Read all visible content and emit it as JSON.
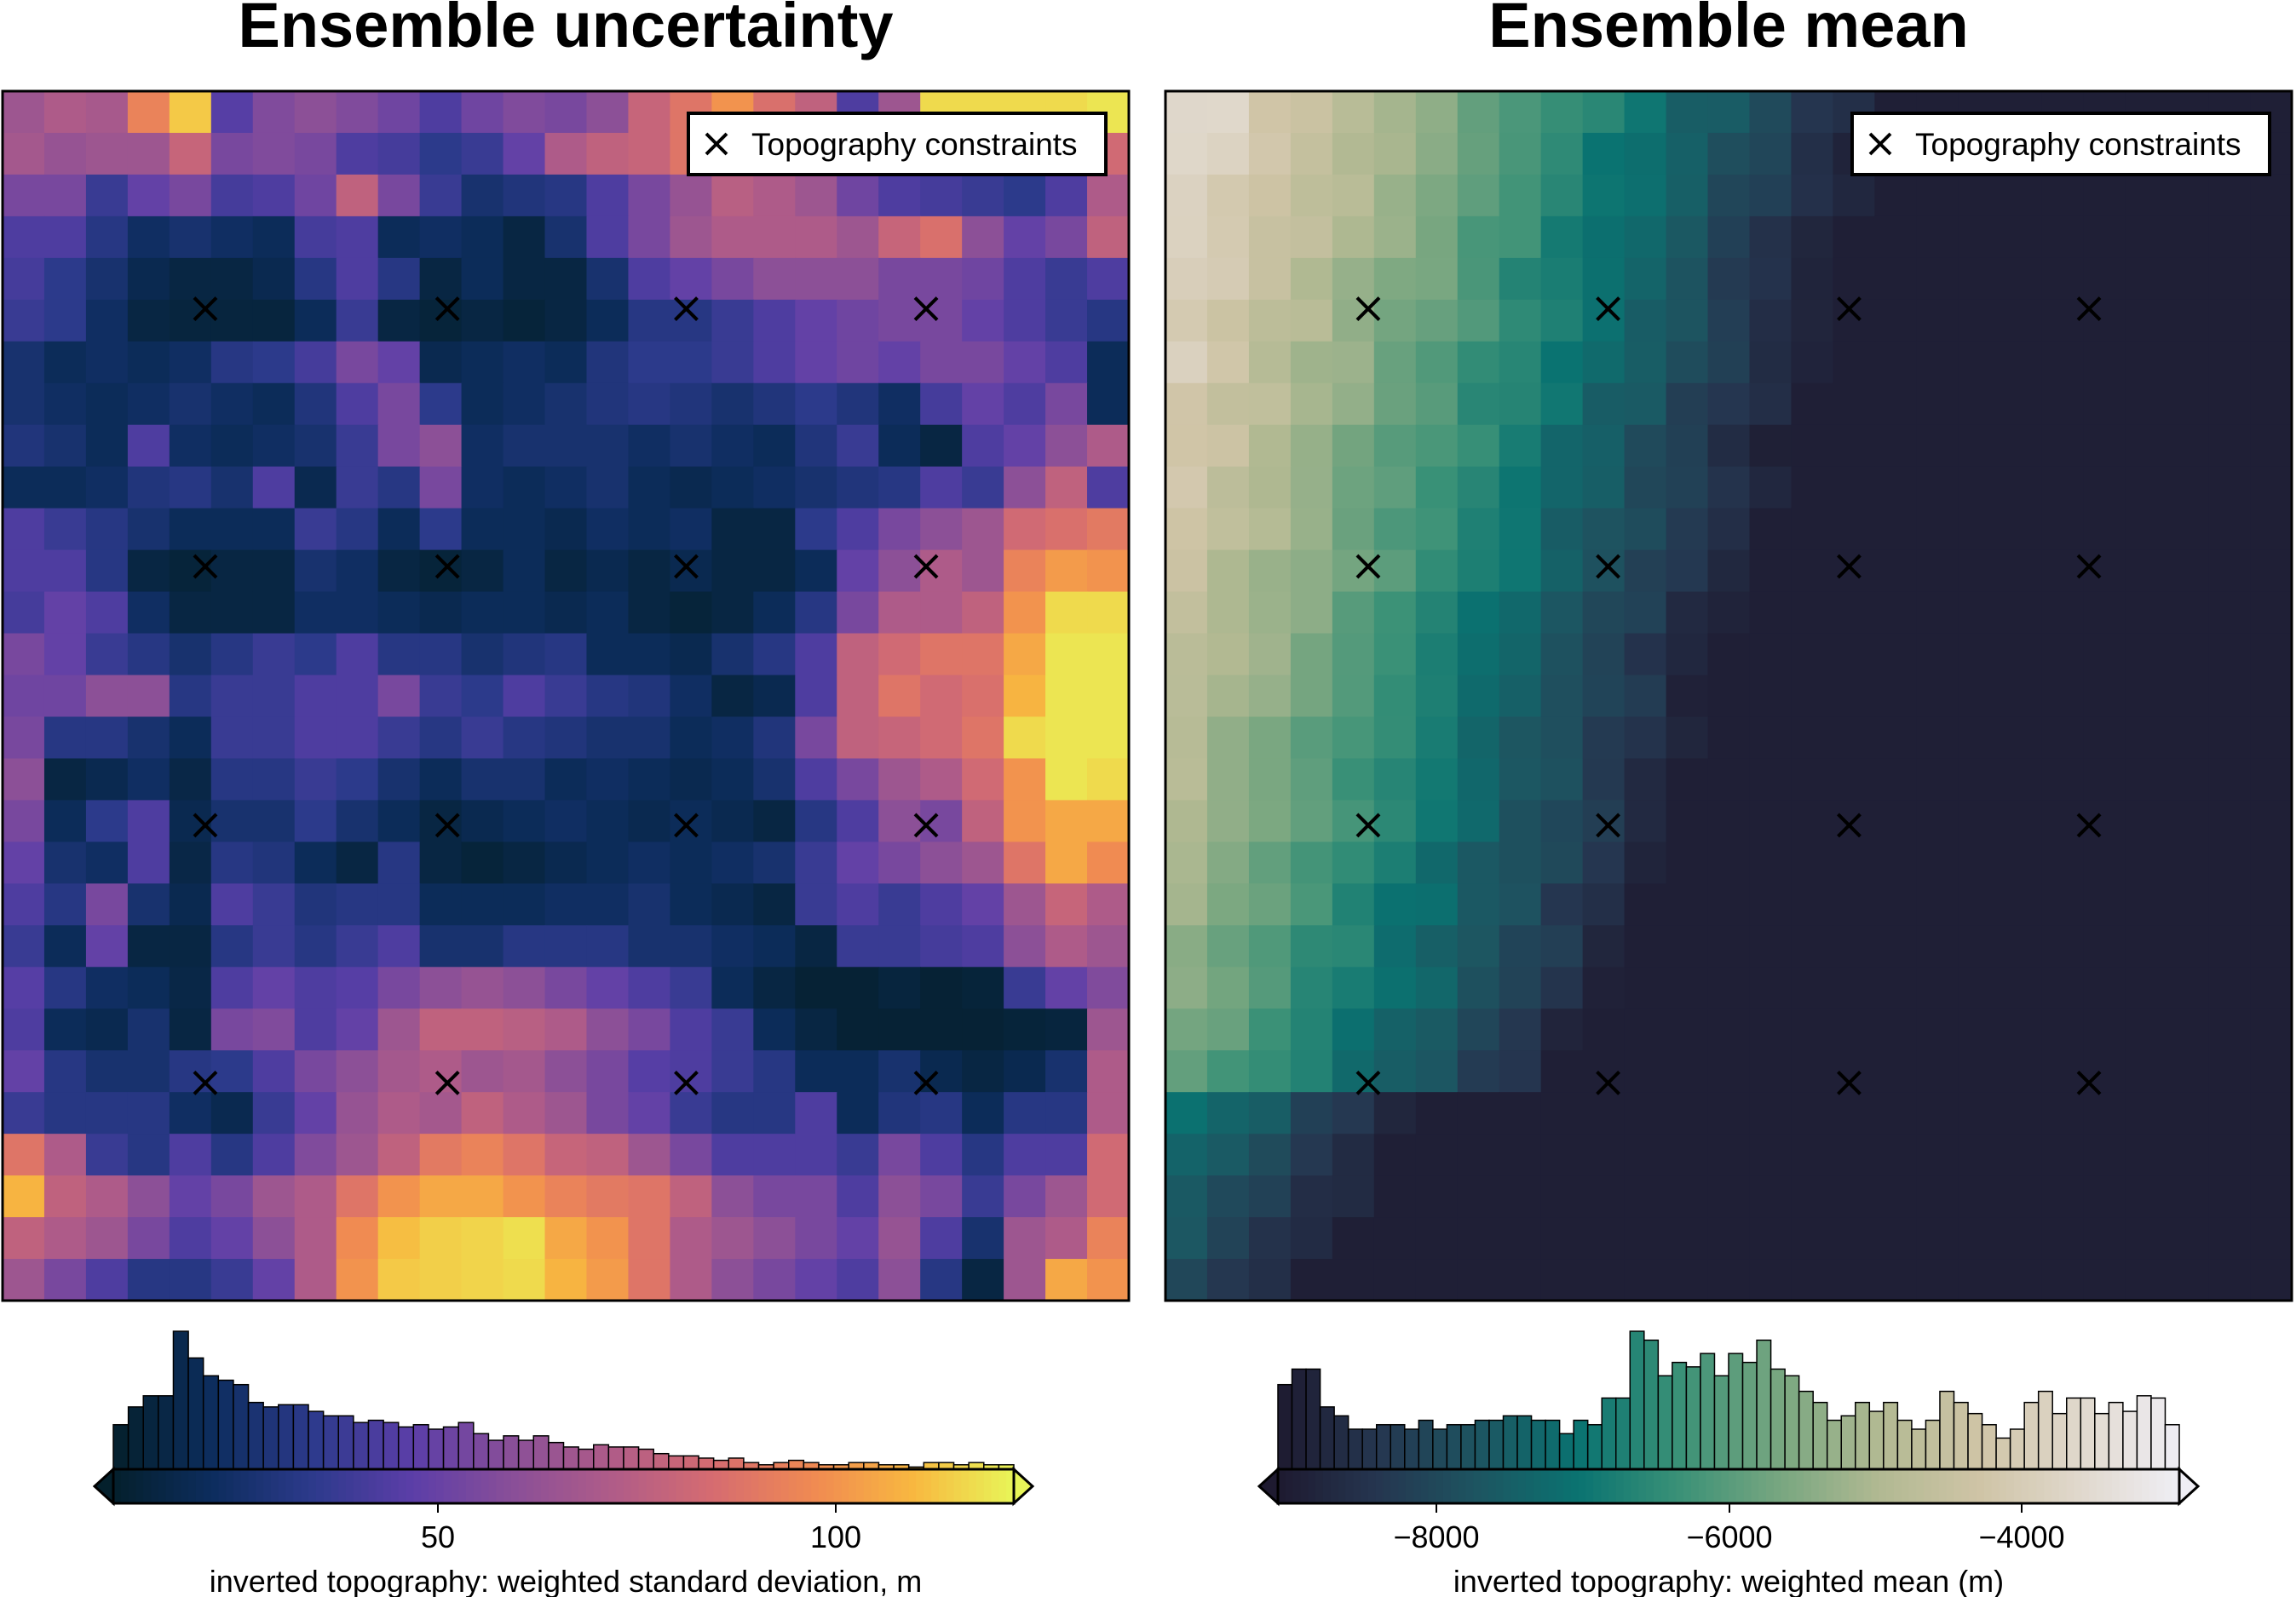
{
  "panels": [
    {
      "title": "Ensemble uncertainty",
      "legend_label": "Topography constraints",
      "colorbar_label": "inverted topography: weighted standard deviation, m",
      "colorbar_ticks": [
        "50",
        "100"
      ],
      "colormap": "thermal",
      "colors": [
        "#04202c",
        "#0d2d5e",
        "#2d3a8c",
        "#5c3ea8",
        "#8a4f98",
        "#b05c88",
        "#d66c70",
        "#f08a52",
        "#f8b840",
        "#e8f558"
      ]
    },
    {
      "title": "Ensemble mean",
      "legend_label": "Topography constraints",
      "colorbar_label": "inverted topography: weighted mean (m)",
      "colorbar_ticks": [
        "−8000",
        "−6000",
        "−4000"
      ],
      "colormap": "rain",
      "colors": [
        "#1e1a30",
        "#253650",
        "#1d5561",
        "#0a7371",
        "#3a9177",
        "#77a680",
        "#b1b992",
        "#cfc4a6",
        "#e0d8cc",
        "#efeef5"
      ]
    }
  ],
  "chart_data": [
    {
      "type": "heatmap",
      "title": "Ensemble uncertainty",
      "grid": false,
      "colorbar_label": "inverted topography: weighted standard deviation, m",
      "colorbar_range": [
        10,
        122
      ],
      "colorbar_ticks": [
        50,
        100
      ],
      "colorbar_extend": "both",
      "hist_heights": [
        20,
        28,
        33,
        33,
        62,
        50,
        42,
        40,
        38,
        30,
        28,
        29,
        29,
        26,
        24,
        24,
        21,
        22,
        21,
        19,
        20,
        18,
        19,
        21,
        16,
        13,
        15,
        13,
        15,
        12,
        10,
        9,
        11,
        10,
        10,
        9,
        7,
        6,
        6,
        5,
        4,
        5,
        3,
        2,
        3,
        4,
        3,
        2,
        2,
        3,
        3,
        2,
        2,
        1,
        3,
        3,
        2,
        3,
        2,
        2
      ],
      "constraints_label": "Topography constraints",
      "constraints": [
        [
          0.18,
          0.18
        ],
        [
          0.395,
          0.18
        ],
        [
          0.607,
          0.18
        ],
        [
          0.82,
          0.18
        ],
        [
          0.18,
          0.393
        ],
        [
          0.395,
          0.393
        ],
        [
          0.607,
          0.393
        ],
        [
          0.82,
          0.393
        ],
        [
          0.18,
          0.607
        ],
        [
          0.395,
          0.607
        ],
        [
          0.607,
          0.607
        ],
        [
          0.82,
          0.607
        ],
        [
          0.18,
          0.82
        ],
        [
          0.395,
          0.82
        ],
        [
          0.607,
          0.82
        ],
        [
          0.82,
          0.82
        ]
      ],
      "grid_values": [
        [
          0.5,
          0.55,
          0.53,
          0.75,
          0.92,
          0.32,
          0.42,
          0.45,
          0.42,
          0.38,
          0.3,
          0.38,
          0.42,
          0.4,
          0.45,
          0.62,
          0.7,
          0.8,
          0.68,
          0.6,
          0.3,
          0.5,
          0.95,
          0.95,
          0.95,
          0.95,
          0.97
        ],
        [
          0.52,
          0.48,
          0.5,
          0.5,
          0.62,
          0.4,
          0.42,
          0.4,
          0.3,
          0.28,
          0.22,
          0.25,
          0.35,
          0.55,
          0.6,
          0.62,
          0.7,
          0.7,
          0.72,
          0.65,
          0.45,
          0.3,
          0.28,
          0.22,
          0.2,
          0.18,
          0.65
        ],
        [
          0.4,
          0.4,
          0.25,
          0.35,
          0.4,
          0.28,
          0.3,
          0.38,
          0.6,
          0.4,
          0.25,
          0.15,
          0.18,
          0.2,
          0.3,
          0.4,
          0.48,
          0.58,
          0.55,
          0.5,
          0.38,
          0.3,
          0.28,
          0.25,
          0.22,
          0.3,
          0.55
        ],
        [
          0.3,
          0.3,
          0.2,
          0.12,
          0.15,
          0.12,
          0.1,
          0.28,
          0.3,
          0.1,
          0.12,
          0.1,
          0.05,
          0.15,
          0.3,
          0.4,
          0.5,
          0.55,
          0.55,
          0.55,
          0.5,
          0.62,
          0.68,
          0.45,
          0.35,
          0.4,
          0.6
        ],
        [
          0.28,
          0.22,
          0.15,
          0.08,
          0.05,
          0.05,
          0.08,
          0.2,
          0.3,
          0.2,
          0.05,
          0.1,
          0.05,
          0.05,
          0.15,
          0.3,
          0.35,
          0.4,
          0.45,
          0.45,
          0.45,
          0.4,
          0.4,
          0.38,
          0.3,
          0.25,
          0.3
        ],
        [
          0.25,
          0.22,
          0.12,
          0.05,
          0.04,
          0.04,
          0.04,
          0.1,
          0.25,
          0.05,
          0.03,
          0.05,
          0.03,
          0.05,
          0.1,
          0.2,
          0.2,
          0.25,
          0.3,
          0.35,
          0.38,
          0.4,
          0.4,
          0.35,
          0.3,
          0.25,
          0.2
        ],
        [
          0.15,
          0.1,
          0.12,
          0.1,
          0.12,
          0.2,
          0.22,
          0.28,
          0.4,
          0.35,
          0.08,
          0.1,
          0.12,
          0.1,
          0.18,
          0.22,
          0.22,
          0.25,
          0.3,
          0.35,
          0.38,
          0.35,
          0.4,
          0.4,
          0.35,
          0.3,
          0.1
        ],
        [
          0.15,
          0.12,
          0.1,
          0.12,
          0.15,
          0.12,
          0.1,
          0.18,
          0.3,
          0.4,
          0.22,
          0.1,
          0.12,
          0.15,
          0.18,
          0.2,
          0.18,
          0.15,
          0.18,
          0.22,
          0.18,
          0.12,
          0.28,
          0.35,
          0.3,
          0.4,
          0.1
        ],
        [
          0.18,
          0.15,
          0.1,
          0.3,
          0.12,
          0.1,
          0.12,
          0.15,
          0.25,
          0.4,
          0.45,
          0.12,
          0.15,
          0.15,
          0.15,
          0.12,
          0.15,
          0.12,
          0.1,
          0.18,
          0.25,
          0.1,
          0.05,
          0.3,
          0.35,
          0.45,
          0.55
        ],
        [
          0.1,
          0.1,
          0.12,
          0.18,
          0.2,
          0.15,
          0.3,
          0.08,
          0.25,
          0.2,
          0.4,
          0.12,
          0.1,
          0.12,
          0.15,
          0.1,
          0.08,
          0.1,
          0.12,
          0.15,
          0.18,
          0.2,
          0.3,
          0.25,
          0.45,
          0.6,
          0.3
        ],
        [
          0.3,
          0.25,
          0.2,
          0.15,
          0.1,
          0.1,
          0.1,
          0.25,
          0.2,
          0.1,
          0.22,
          0.1,
          0.1,
          0.08,
          0.12,
          0.1,
          0.12,
          0.05,
          0.05,
          0.22,
          0.3,
          0.4,
          0.45,
          0.5,
          0.65,
          0.68,
          0.72
        ],
        [
          0.3,
          0.3,
          0.2,
          0.05,
          0.03,
          0.05,
          0.05,
          0.15,
          0.12,
          0.05,
          0.03,
          0.05,
          0.1,
          0.05,
          0.08,
          0.05,
          0.08,
          0.05,
          0.05,
          0.1,
          0.35,
          0.45,
          0.55,
          0.5,
          0.75,
          0.82,
          0.8
        ],
        [
          0.28,
          0.35,
          0.3,
          0.12,
          0.05,
          0.05,
          0.05,
          0.12,
          0.12,
          0.1,
          0.08,
          0.1,
          0.1,
          0.08,
          0.1,
          0.05,
          0.03,
          0.05,
          0.1,
          0.2,
          0.4,
          0.55,
          0.55,
          0.6,
          0.8,
          0.95,
          0.95
        ],
        [
          0.4,
          0.35,
          0.25,
          0.2,
          0.15,
          0.2,
          0.25,
          0.22,
          0.3,
          0.2,
          0.2,
          0.15,
          0.18,
          0.2,
          0.1,
          0.1,
          0.08,
          0.15,
          0.2,
          0.3,
          0.6,
          0.65,
          0.7,
          0.7,
          0.85,
          0.97,
          0.97
        ],
        [
          0.38,
          0.38,
          0.45,
          0.45,
          0.2,
          0.25,
          0.25,
          0.3,
          0.3,
          0.4,
          0.25,
          0.22,
          0.3,
          0.25,
          0.2,
          0.18,
          0.12,
          0.05,
          0.08,
          0.3,
          0.6,
          0.7,
          0.65,
          0.68,
          0.88,
          0.97,
          0.97
        ],
        [
          0.25,
          0.45,
          0.5,
          0.42,
          0.1,
          0.3,
          0.3,
          0.35,
          0.35,
          0.45,
          0.3,
          0.3,
          0.3,
          0.3,
          0.2,
          0.15,
          0.05,
          0.08,
          0.1,
          0.4,
          0.75,
          0.7,
          0.72,
          0.75,
          0.9,
          0.97,
          0.85
        ],
        [
          0.4,
          0.2,
          0.2,
          0.15,
          0.1,
          0.25,
          0.25,
          0.3,
          0.3,
          0.25,
          0.2,
          0.25,
          0.2,
          0.18,
          0.15,
          0.15,
          0.1,
          0.12,
          0.18,
          0.4,
          0.6,
          0.62,
          0.65,
          0.7,
          0.95,
          0.97,
          0.97
        ],
        [
          0.45,
          0.05,
          0.08,
          0.12,
          0.06,
          0.2,
          0.2,
          0.25,
          0.22,
          0.15,
          0.1,
          0.15,
          0.15,
          0.1,
          0.12,
          0.1,
          0.08,
          0.1,
          0.15,
          0.3,
          0.4,
          0.5,
          0.55,
          0.65,
          0.8,
          0.97,
          0.95
        ],
        [
          0.4,
          0.1,
          0.22,
          0.3,
          0.08,
          0.15,
          0.15,
          0.22,
          0.15,
          0.1,
          0.05,
          0.08,
          0.1,
          0.12,
          0.1,
          0.08,
          0.1,
          0.08,
          0.05,
          0.2,
          0.3,
          0.45,
          0.4,
          0.6,
          0.8,
          0.85,
          0.85
        ],
        [
          0.35,
          0.15,
          0.12,
          0.3,
          0.06,
          0.2,
          0.18,
          0.1,
          0.05,
          0.2,
          0.05,
          0.03,
          0.05,
          0.08,
          0.1,
          0.12,
          0.1,
          0.12,
          0.15,
          0.25,
          0.35,
          0.4,
          0.45,
          0.5,
          0.7,
          0.85,
          0.78
        ],
        [
          0.3,
          0.2,
          0.4,
          0.15,
          0.08,
          0.3,
          0.25,
          0.18,
          0.2,
          0.2,
          0.1,
          0.1,
          0.1,
          0.12,
          0.12,
          0.15,
          0.1,
          0.08,
          0.05,
          0.25,
          0.3,
          0.25,
          0.3,
          0.35,
          0.5,
          0.62,
          0.55
        ],
        [
          0.25,
          0.1,
          0.35,
          0.05,
          0.05,
          0.2,
          0.25,
          0.2,
          0.25,
          0.3,
          0.15,
          0.15,
          0.2,
          0.2,
          0.2,
          0.15,
          0.15,
          0.12,
          0.1,
          0.05,
          0.25,
          0.25,
          0.28,
          0.3,
          0.45,
          0.55,
          0.5
        ],
        [
          0.32,
          0.2,
          0.12,
          0.1,
          0.06,
          0.3,
          0.35,
          0.3,
          0.32,
          0.4,
          0.45,
          0.48,
          0.45,
          0.4,
          0.35,
          0.3,
          0.25,
          0.1,
          0.05,
          0.02,
          0.02,
          0.04,
          0.02,
          0.03,
          0.25,
          0.35,
          0.42
        ],
        [
          0.3,
          0.1,
          0.08,
          0.15,
          0.05,
          0.4,
          0.42,
          0.3,
          0.35,
          0.5,
          0.6,
          0.6,
          0.58,
          0.55,
          0.45,
          0.4,
          0.3,
          0.25,
          0.1,
          0.05,
          0.02,
          0.02,
          0.02,
          0.02,
          0.03,
          0.04,
          0.5
        ],
        [
          0.35,
          0.2,
          0.15,
          0.15,
          0.2,
          0.22,
          0.3,
          0.4,
          0.45,
          0.52,
          0.55,
          0.5,
          0.52,
          0.45,
          0.4,
          0.32,
          0.3,
          0.25,
          0.2,
          0.1,
          0.1,
          0.15,
          0.08,
          0.05,
          0.08,
          0.15,
          0.55
        ],
        [
          0.25,
          0.2,
          0.2,
          0.2,
          0.12,
          0.08,
          0.25,
          0.35,
          0.48,
          0.55,
          0.52,
          0.6,
          0.55,
          0.5,
          0.4,
          0.35,
          0.25,
          0.2,
          0.2,
          0.3,
          0.1,
          0.18,
          0.2,
          0.1,
          0.2,
          0.2,
          0.55
        ],
        [
          0.7,
          0.55,
          0.25,
          0.2,
          0.3,
          0.2,
          0.3,
          0.42,
          0.5,
          0.6,
          0.72,
          0.75,
          0.7,
          0.62,
          0.6,
          0.5,
          0.4,
          0.3,
          0.3,
          0.3,
          0.25,
          0.4,
          0.3,
          0.2,
          0.3,
          0.3,
          0.65
        ],
        [
          0.88,
          0.6,
          0.55,
          0.45,
          0.35,
          0.4,
          0.5,
          0.55,
          0.7,
          0.8,
          0.85,
          0.85,
          0.8,
          0.75,
          0.72,
          0.7,
          0.6,
          0.45,
          0.4,
          0.4,
          0.3,
          0.45,
          0.4,
          0.25,
          0.4,
          0.5,
          0.65
        ],
        [
          0.6,
          0.55,
          0.5,
          0.4,
          0.3,
          0.35,
          0.45,
          0.55,
          0.78,
          0.9,
          0.93,
          0.94,
          0.96,
          0.85,
          0.8,
          0.7,
          0.55,
          0.5,
          0.45,
          0.4,
          0.35,
          0.48,
          0.3,
          0.15,
          0.5,
          0.55,
          0.75
        ],
        [
          0.5,
          0.4,
          0.3,
          0.2,
          0.2,
          0.25,
          0.35,
          0.55,
          0.8,
          0.92,
          0.93,
          0.94,
          0.95,
          0.88,
          0.82,
          0.7,
          0.55,
          0.45,
          0.4,
          0.35,
          0.3,
          0.45,
          0.2,
          0.05,
          0.5,
          0.85,
          0.8
        ],
        [
          0.45,
          0.3,
          0.25,
          0.15,
          0.05,
          0.1,
          0.2,
          0.45,
          0.6,
          0.7,
          0.8,
          0.8,
          0.78,
          0.7,
          0.62,
          0.55,
          0.45,
          0.35,
          0.3,
          0.3,
          0.35,
          0.4,
          0.2,
          0.05,
          0.4,
          0.55,
          0.55
        ]
      ]
    },
    {
      "type": "heatmap",
      "title": "Ensemble mean",
      "grid": false,
      "colorbar_label": "inverted topography: weighted mean (m)",
      "colorbar_range": [
        -9100,
        -2900
      ],
      "colorbar_ticks": [
        -8000,
        -6000,
        -4000
      ],
      "colorbar_extend": "both",
      "hist_heights": [
        38,
        45,
        45,
        28,
        24,
        18,
        18,
        20,
        20,
        18,
        22,
        18,
        20,
        20,
        22,
        22,
        24,
        24,
        22,
        22,
        16,
        22,
        20,
        32,
        32,
        62,
        58,
        42,
        48,
        46,
        52,
        42,
        52,
        48,
        58,
        45,
        42,
        35,
        30,
        22,
        24,
        30,
        26,
        30,
        22,
        18,
        22,
        35,
        30,
        25,
        20,
        14,
        18,
        30,
        35,
        25,
        32,
        32,
        25,
        30,
        26,
        33,
        32,
        20
      ],
      "constraints_label": "Topography constraints",
      "constraints": [
        [
          0.18,
          0.18
        ],
        [
          0.393,
          0.18
        ],
        [
          0.607,
          0.18
        ],
        [
          0.82,
          0.18
        ],
        [
          0.18,
          0.393
        ],
        [
          0.393,
          0.393
        ],
        [
          0.607,
          0.393
        ],
        [
          0.82,
          0.393
        ],
        [
          0.18,
          0.607
        ],
        [
          0.393,
          0.607
        ],
        [
          0.607,
          0.607
        ],
        [
          0.82,
          0.607
        ],
        [
          0.18,
          0.82
        ],
        [
          0.393,
          0.82
        ],
        [
          0.607,
          0.82
        ],
        [
          0.82,
          0.82
        ]
      ]
    }
  ]
}
